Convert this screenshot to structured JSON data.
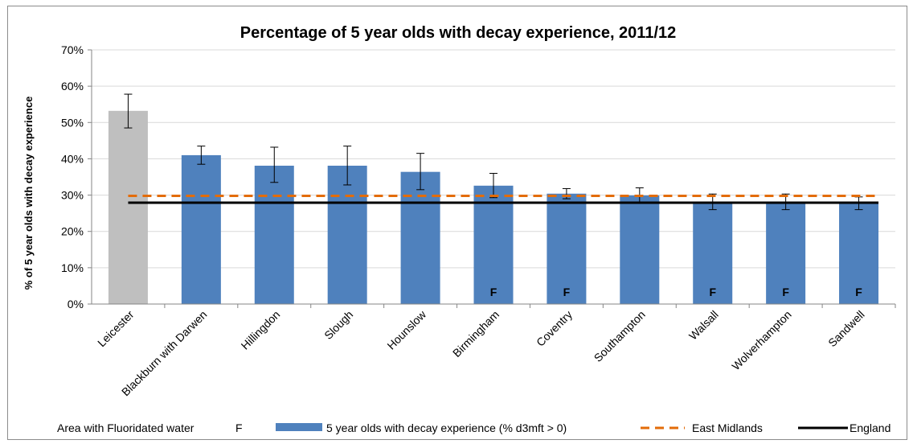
{
  "chart_data": {
    "type": "bar",
    "title": "Percentage of 5 year olds with decay experience, 2011/12",
    "xlabel": "",
    "ylabel": "% of 5 year olds with decay experience",
    "ylim": [
      0,
      70
    ],
    "y_ticks": [
      "0%",
      "10%",
      "20%",
      "30%",
      "40%",
      "50%",
      "60%",
      "70%"
    ],
    "categories": [
      "Leicester",
      "Blackburn with Darwen",
      "Hillingdon",
      "Slough",
      "Hounslow",
      "Birmingham",
      "Coventry",
      "Southampton",
      "Walsall",
      "Wolverhampton",
      "Sandwell"
    ],
    "series": [
      {
        "name": "5 year olds with decay experience (% d3mft > 0)",
        "values": [
          53.2,
          41.0,
          38.1,
          38.1,
          36.4,
          32.6,
          30.4,
          29.9,
          28.0,
          28.0,
          27.8
        ],
        "ci_lower": [
          48.5,
          38.5,
          33.5,
          32.8,
          31.5,
          29.3,
          29.0,
          27.9,
          26.0,
          26.0,
          26.0
        ],
        "ci_upper": [
          57.8,
          43.5,
          43.2,
          43.5,
          41.5,
          36.0,
          31.8,
          32.0,
          30.3,
          30.3,
          29.5
        ],
        "colors": [
          "#bfbfbf",
          "#4f81bd",
          "#4f81bd",
          "#4f81bd",
          "#4f81bd",
          "#4f81bd",
          "#4f81bd",
          "#4f81bd",
          "#4f81bd",
          "#4f81bd",
          "#4f81bd"
        ]
      }
    ],
    "fluoridated": [
      false,
      false,
      false,
      false,
      false,
      true,
      true,
      false,
      true,
      true,
      true
    ],
    "fluoridated_mark": "F",
    "reference_lines": [
      {
        "name": "East Midlands",
        "value": 29.8,
        "color": "#e36c09",
        "style": "dashed"
      },
      {
        "name": "England",
        "value": 27.9,
        "color": "#000000",
        "style": "solid"
      }
    ],
    "legend": {
      "fluoridated_label": "Area with Fluoridated water",
      "fluoridated_symbol": "F",
      "bar_label": "5 year olds with decay experience (% d3mft > 0)",
      "east_midlands_label": "East Midlands",
      "england_label": "England",
      "placement": "bottom"
    },
    "grid": true
  }
}
